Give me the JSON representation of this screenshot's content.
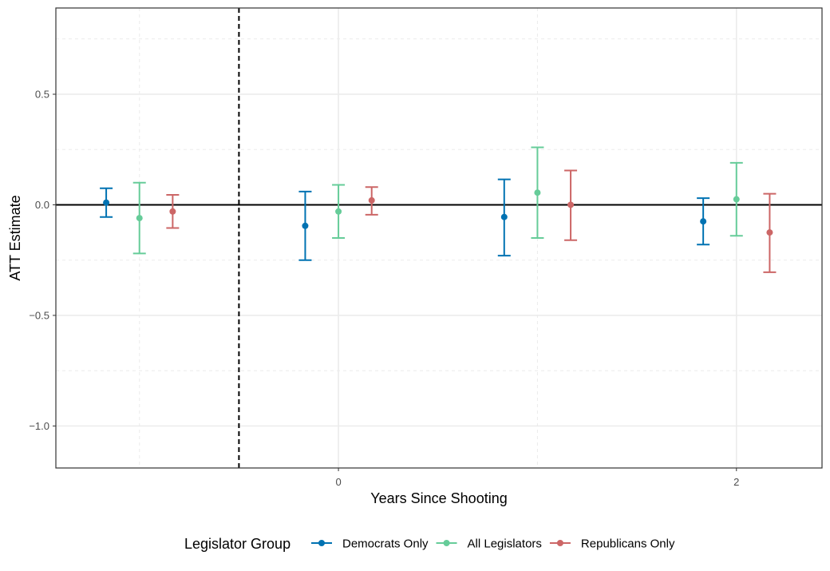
{
  "chart_data": {
    "type": "scatter",
    "subtype": "point-range (estimate with confidence interval error bars)",
    "xlabel": "Years Since Shooting",
    "ylabel": "ATT Estimate",
    "x_ticks": [
      0,
      2
    ],
    "y_ticks": [
      -1.0,
      -0.5,
      0.0,
      0.5
    ],
    "y_tick_labels": [
      "−1.0",
      "−0.5",
      "0.0",
      "0.5"
    ],
    "x_tick_labels": [
      "0",
      "2"
    ],
    "xlim": [
      -1.42,
      2.43
    ],
    "ylim": [
      -1.19,
      0.89
    ],
    "grid": true,
    "reference_hline": 0,
    "reference_vline": -0.5,
    "groups": [
      -1,
      0,
      1,
      2
    ],
    "dodge": 0.167,
    "legend": {
      "title": "Legislator Group",
      "position": "bottom"
    },
    "series": [
      {
        "name": "Democrats Only",
        "color": "#0072B2",
        "x": [
          -1,
          0,
          1,
          2
        ],
        "y": [
          0.01,
          -0.095,
          -0.055,
          -0.075
        ],
        "ymin": [
          -0.055,
          -0.25,
          -0.23,
          -0.18
        ],
        "ymax": [
          0.075,
          0.06,
          0.115,
          0.03
        ]
      },
      {
        "name": "All Legislators",
        "color": "#66CC99",
        "x": [
          -1,
          0,
          1,
          2
        ],
        "y": [
          -0.06,
          -0.03,
          0.055,
          0.025
        ],
        "ymin": [
          -0.22,
          -0.15,
          -0.15,
          -0.14
        ],
        "ymax": [
          0.1,
          0.09,
          0.26,
          0.19
        ]
      },
      {
        "name": "Republicans Only",
        "color": "#CC6666",
        "x": [
          -1,
          0,
          1,
          2
        ],
        "y": [
          -0.03,
          0.02,
          0.0,
          -0.125
        ],
        "ymin": [
          -0.105,
          -0.045,
          -0.16,
          -0.305
        ],
        "ymax": [
          0.045,
          0.08,
          0.155,
          0.05
        ]
      }
    ]
  }
}
